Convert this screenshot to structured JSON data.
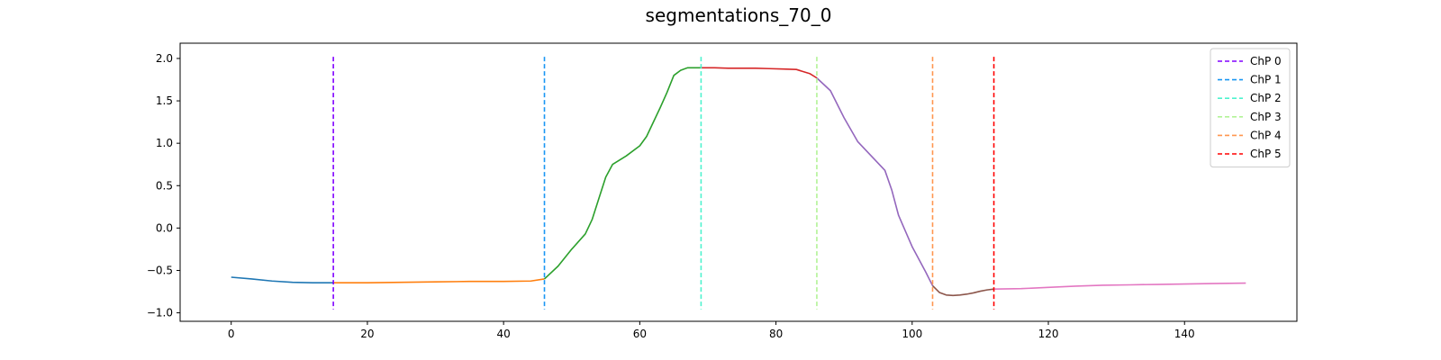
{
  "chart_data": {
    "type": "line",
    "title": "segmentations_70_0",
    "xlabel": "",
    "ylabel": "",
    "xlim": [
      -7.5,
      156.5
    ],
    "ylim": [
      -1.1,
      2.18
    ],
    "x_ticks": [
      0,
      20,
      40,
      60,
      80,
      100,
      120,
      140
    ],
    "y_ticks": [
      -1.0,
      -0.5,
      0.0,
      0.5,
      1.0,
      1.5,
      2.0
    ],
    "grid": false,
    "legend_position": "top-right",
    "series": [
      {
        "color": "#1f77b4",
        "x": [
          0,
          3,
          6,
          9,
          12,
          15
        ],
        "y": [
          -0.58,
          -0.6,
          -0.625,
          -0.64,
          -0.645,
          -0.645
        ]
      },
      {
        "color": "#ff7f0e",
        "x": [
          15,
          20,
          25,
          30,
          35,
          40,
          44,
          46
        ],
        "y": [
          -0.645,
          -0.645,
          -0.64,
          -0.635,
          -0.63,
          -0.63,
          -0.625,
          -0.6
        ]
      },
      {
        "color": "#2ca02c",
        "x": [
          46,
          48,
          50,
          52,
          53,
          54,
          55,
          56,
          58,
          60,
          61,
          62,
          63,
          64,
          65,
          66,
          67,
          68,
          69
        ],
        "y": [
          -0.6,
          -0.45,
          -0.25,
          -0.07,
          0.1,
          0.35,
          0.6,
          0.75,
          0.85,
          0.97,
          1.08,
          1.25,
          1.42,
          1.6,
          1.8,
          1.86,
          1.89,
          1.89,
          1.89
        ]
      },
      {
        "color": "#d62728",
        "x": [
          69,
          71,
          73,
          75,
          77,
          79,
          81,
          83,
          85,
          86
        ],
        "y": [
          1.89,
          1.89,
          1.885,
          1.885,
          1.885,
          1.88,
          1.875,
          1.87,
          1.82,
          1.77
        ]
      },
      {
        "color": "#9467bd",
        "x": [
          86,
          88,
          90,
          92,
          94,
          96,
          97,
          98,
          100,
          102,
          103
        ],
        "y": [
          1.77,
          1.62,
          1.3,
          1.02,
          0.85,
          0.68,
          0.45,
          0.15,
          -0.22,
          -0.52,
          -0.68
        ]
      },
      {
        "color": "#8c564b",
        "x": [
          103,
          104,
          105,
          106,
          107,
          108,
          109,
          110,
          111,
          112
        ],
        "y": [
          -0.68,
          -0.76,
          -0.79,
          -0.795,
          -0.79,
          -0.78,
          -0.765,
          -0.745,
          -0.73,
          -0.72
        ]
      },
      {
        "color": "#e377c2",
        "x": [
          112,
          116,
          120,
          124,
          128,
          132,
          136,
          140,
          144,
          149
        ],
        "y": [
          -0.72,
          -0.715,
          -0.7,
          -0.685,
          -0.675,
          -0.67,
          -0.665,
          -0.66,
          -0.655,
          -0.65
        ]
      }
    ],
    "change_points": [
      {
        "name": "ChP 0",
        "x": 15,
        "color": "#8000ff"
      },
      {
        "name": "ChP 1",
        "x": 46,
        "color": "#1996f3"
      },
      {
        "name": "ChP 2",
        "x": 69,
        "color": "#4df3ce"
      },
      {
        "name": "ChP 3",
        "x": 86,
        "color": "#b2f396"
      },
      {
        "name": "ChP 4",
        "x": 103,
        "color": "#ff964f"
      },
      {
        "name": "ChP 5",
        "x": 112,
        "color": "#ff0000"
      }
    ]
  }
}
